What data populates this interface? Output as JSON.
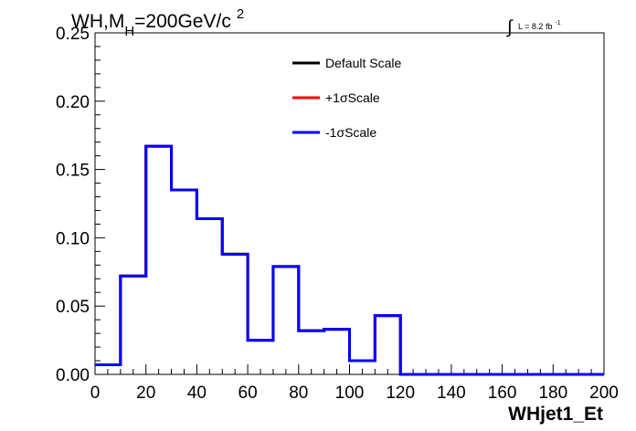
{
  "chart_data": {
    "type": "line",
    "title_parts": {
      "a": "WH,M",
      "sub": "H",
      "b": "=200GeV/c",
      "sup": "2"
    },
    "lumi_parts": {
      "integral": "∫",
      "text": "L = 8.2 fb",
      "sup": "-1"
    },
    "xlabel": "WHjet1_Et",
    "ylabel": "",
    "xlim": [
      0,
      200
    ],
    "ylim": [
      0,
      0.25
    ],
    "x_tick_labels": [
      "0",
      "20",
      "40",
      "60",
      "80",
      "100",
      "120",
      "140",
      "160",
      "180",
      "200"
    ],
    "y_tick_labels": [
      "0.00",
      "0.05",
      "0.10",
      "0.15",
      "0.20",
      "0.25"
    ],
    "bin_edges": [
      0,
      10,
      20,
      30,
      40,
      50,
      60,
      70,
      80,
      90,
      100,
      110,
      120,
      130,
      140,
      150,
      160,
      170,
      180,
      190,
      200
    ],
    "series": [
      {
        "name": "Default Scale",
        "color": "#000000",
        "values": [
          0.007,
          0.072,
          0.167,
          0.135,
          0.114,
          0.088,
          0.025,
          0.079,
          0.032,
          0.033,
          0.01,
          0.043,
          0,
          0,
          0,
          0,
          0,
          0,
          0,
          0
        ]
      },
      {
        "name": "+1σScale",
        "color": "#ff0000",
        "values": [
          0.007,
          0.072,
          0.167,
          0.135,
          0.114,
          0.088,
          0.025,
          0.079,
          0.032,
          0.033,
          0.01,
          0.043,
          0,
          0,
          0,
          0,
          0,
          0,
          0,
          0
        ]
      },
      {
        "name": "-1σScale",
        "color": "#0000ff",
        "values": [
          0.007,
          0.072,
          0.167,
          0.135,
          0.114,
          0.088,
          0.025,
          0.079,
          0.032,
          0.033,
          0.01,
          0.043,
          0,
          0,
          0,
          0,
          0,
          0,
          0,
          0
        ]
      }
    ],
    "legend_position": "top-center",
    "grid": false
  }
}
